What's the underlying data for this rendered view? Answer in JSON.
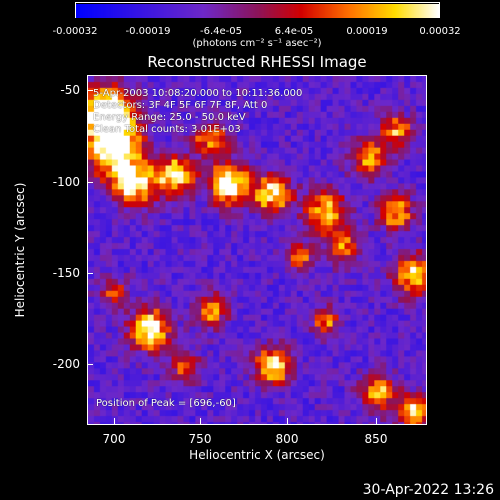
{
  "colorbar": {
    "ticks": [
      "-0.00032",
      "-0.00019",
      "-6.4e-05",
      "6.4e-05",
      "0.00019",
      "0.00032"
    ],
    "unit": "(photons cm⁻² s⁻¹ asec⁻²)"
  },
  "footer": {
    "timestamp": "30-Apr-2022 13:26"
  },
  "chart_data": {
    "type": "heatmap",
    "title": "Reconstructed RHESSI Image",
    "xlabel": "Heliocentric X (arcsec)",
    "ylabel": "Heliocentric Y (arcsec)",
    "xlim": [
      685,
      877
    ],
    "ylim": [
      -232,
      -40
    ],
    "xticks": [
      "700",
      "750",
      "800",
      "850"
    ],
    "yticks": [
      "-50",
      "-100",
      "-150",
      "-200"
    ],
    "xtick_values": [
      700,
      750,
      800,
      850
    ],
    "ytick_values": [
      -50,
      -100,
      -150,
      -200
    ],
    "colorbar_range": [
      -0.00032,
      0.00032
    ],
    "colormap": "blue-purple-red-yellow-white",
    "annotations": [
      "5-Apr-2003 10:08:20.000 to 10:11:36.000",
      "Detectors: 3F 4F 5F 6F 7F 8F, Att 0",
      "Energy Range: 25.0 - 50.0 keV",
      "Clean    Total counts: 3.01E+03"
    ],
    "peak_text": "Position of Peak = [696,-60]",
    "peak": [
      696,
      -60
    ]
  }
}
